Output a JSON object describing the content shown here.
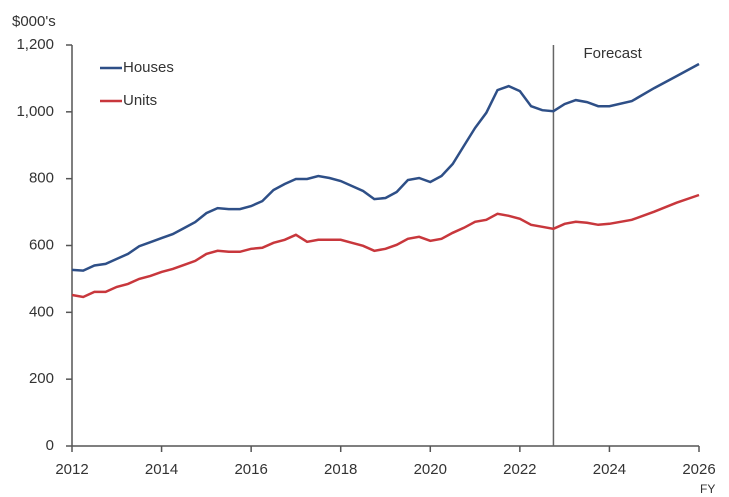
{
  "chart_data": {
    "type": "line",
    "ylabel": "$000's",
    "xlabel": "FY",
    "x": [
      2012,
      2012.25,
      2012.5,
      2012.75,
      2013,
      2013.25,
      2013.5,
      2013.75,
      2014,
      2014.25,
      2014.5,
      2014.75,
      2015,
      2015.25,
      2015.5,
      2015.75,
      2016,
      2016.25,
      2016.5,
      2016.75,
      2017,
      2017.25,
      2017.5,
      2017.75,
      2018,
      2018.25,
      2018.5,
      2018.75,
      2019,
      2019.25,
      2019.5,
      2019.75,
      2020,
      2020.25,
      2020.5,
      2020.75,
      2021,
      2021.25,
      2021.5,
      2021.75,
      2022,
      2022.25,
      2022.5,
      2022.75,
      2023,
      2023.25,
      2023.5,
      2023.75,
      2024,
      2024.5,
      2025,
      2025.5,
      2026
    ],
    "series": [
      {
        "name": "Houses",
        "color": "#2e4f87",
        "values": [
          527,
          525,
          540,
          545,
          560,
          575,
          598,
          610,
          622,
          634,
          652,
          670,
          697,
          712,
          709,
          709,
          718,
          733,
          766,
          784,
          799,
          799,
          808,
          802,
          793,
          778,
          763,
          739,
          742,
          760,
          796,
          802,
          790,
          808,
          844,
          898,
          952,
          997,
          1065,
          1077,
          1062,
          1017,
          1005,
          1002,
          1023,
          1035,
          1029,
          1017,
          1017,
          1032,
          1071,
          1107,
          1143
        ]
      },
      {
        "name": "Units",
        "color": "#c8373c",
        "values": [
          452,
          446,
          461,
          461,
          476,
          485,
          500,
          509,
          521,
          530,
          542,
          554,
          575,
          584,
          581,
          581,
          590,
          593,
          608,
          617,
          632,
          611,
          617,
          617,
          617,
          608,
          599,
          584,
          590,
          602,
          620,
          626,
          614,
          620,
          638,
          653,
          671,
          677,
          695,
          689,
          680,
          662,
          656,
          650,
          665,
          671,
          668,
          662,
          665,
          677,
          701,
          728,
          751
        ]
      }
    ],
    "xlim": [
      2012,
      2026
    ],
    "xticks": [
      2012,
      2014,
      2016,
      2018,
      2020,
      2022,
      2024,
      2026
    ],
    "ylim": [
      0,
      1200
    ],
    "yticks": [
      0,
      200,
      400,
      600,
      800,
      {
        "value": 1000,
        "label": "1,000"
      },
      {
        "value": 1200,
        "label": "1,200"
      }
    ],
    "annotations": [
      {
        "text": "Forecast",
        "x": 2022.75
      }
    ],
    "legend": "upper left",
    "grid": false
  }
}
